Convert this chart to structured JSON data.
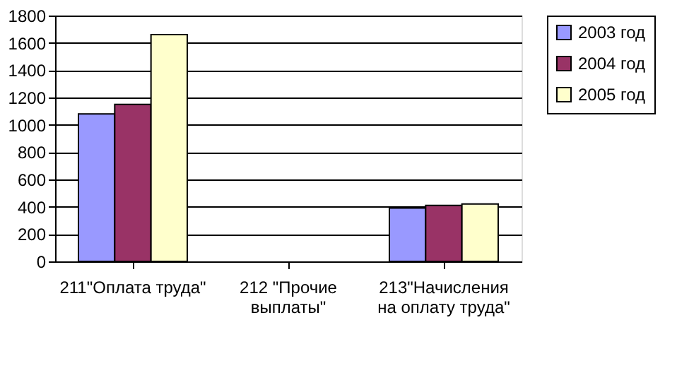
{
  "chart_data": {
    "type": "bar",
    "categories": [
      "211\"Оплата труда\"",
      "212 \"Прочие\nвыплаты\"",
      "213\"Начисления\nна оплату труда\""
    ],
    "series": [
      {
        "name": "2003 год",
        "color": "#9999ff",
        "values": [
          1080,
          null,
          390
        ]
      },
      {
        "name": "2004 год",
        "color": "#993366",
        "values": [
          1150,
          null,
          410
        ]
      },
      {
        "name": "2005 год",
        "color": "#ffffcc",
        "values": [
          1660,
          null,
          420
        ]
      }
    ],
    "ylim": [
      0,
      1800
    ],
    "yticks": [
      0,
      200,
      400,
      600,
      800,
      1000,
      1200,
      1400,
      1600,
      1800
    ],
    "grid": "y",
    "legend": "right"
  }
}
